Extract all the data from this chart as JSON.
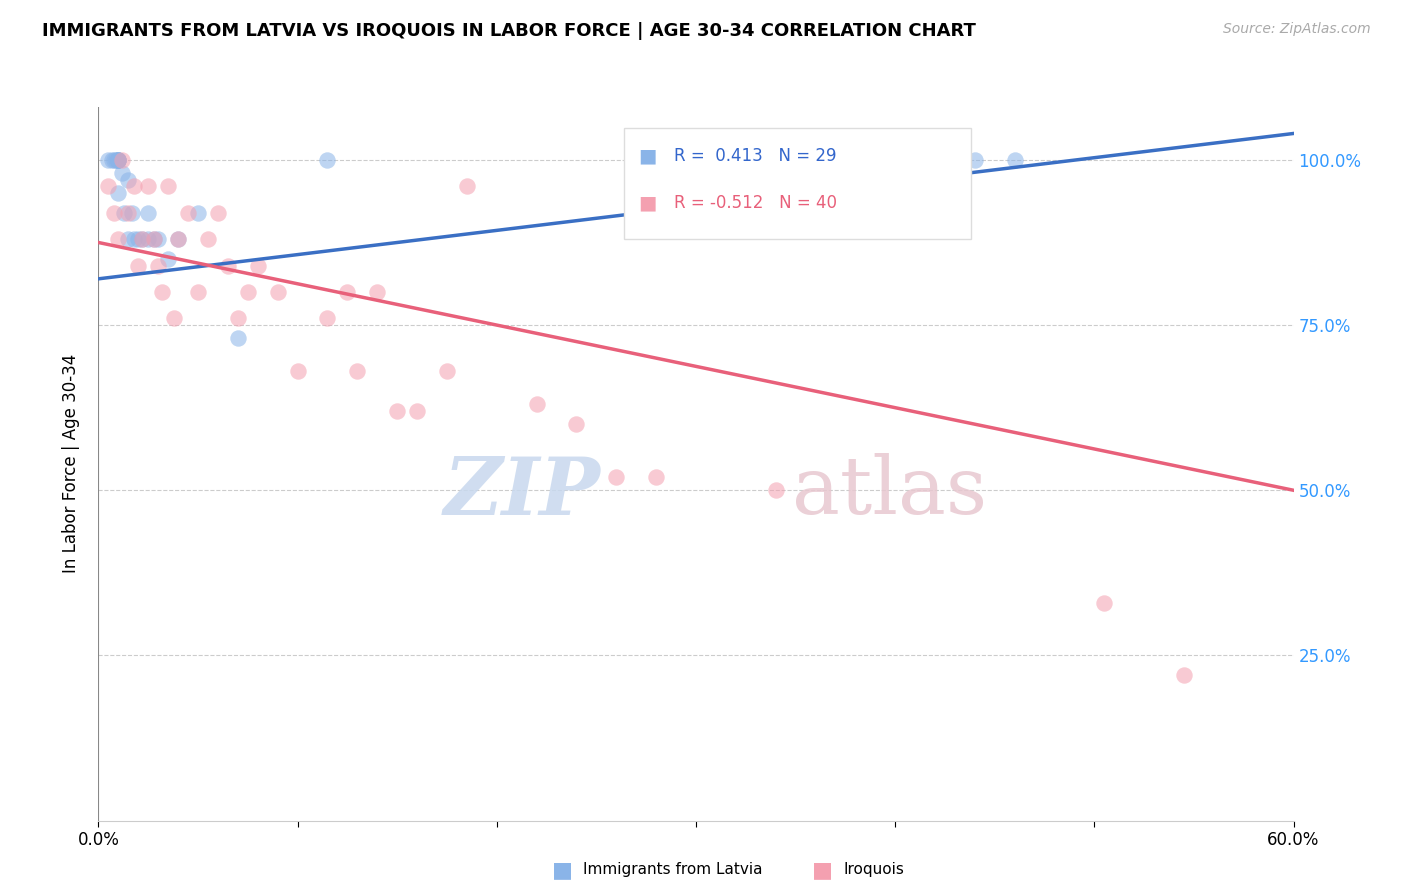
{
  "title": "IMMIGRANTS FROM LATVIA VS IROQUOIS IN LABOR FORCE | AGE 30-34 CORRELATION CHART",
  "source": "Source: ZipAtlas.com",
  "ylabel": "In Labor Force | Age 30-34",
  "ytick_labels": [
    "100.0%",
    "75.0%",
    "50.0%",
    "25.0%"
  ],
  "ytick_values": [
    1.0,
    0.75,
    0.5,
    0.25
  ],
  "xlim": [
    0.0,
    0.6
  ],
  "ylim": [
    0.0,
    1.08
  ],
  "blue_R": 0.413,
  "blue_N": 29,
  "pink_R": -0.512,
  "pink_N": 40,
  "blue_color": "#8ab4e8",
  "pink_color": "#f4a0b0",
  "blue_line_color": "#3a6fc4",
  "pink_line_color": "#e8607a",
  "blue_line_x0": 0.0,
  "blue_line_y0": 0.82,
  "blue_line_x1": 0.6,
  "blue_line_y1": 1.04,
  "pink_line_x0": 0.0,
  "pink_line_y0": 0.875,
  "pink_line_x1": 0.6,
  "pink_line_y1": 0.5,
  "blue_scatter_x": [
    0.005,
    0.007,
    0.008,
    0.009,
    0.01,
    0.01,
    0.01,
    0.01,
    0.01,
    0.01,
    0.012,
    0.013,
    0.015,
    0.015,
    0.017,
    0.018,
    0.02,
    0.022,
    0.025,
    0.025,
    0.028,
    0.03,
    0.035,
    0.04,
    0.05,
    0.07,
    0.115,
    0.44,
    0.46
  ],
  "blue_scatter_y": [
    1.0,
    1.0,
    1.0,
    1.0,
    1.0,
    1.0,
    1.0,
    1.0,
    1.0,
    0.95,
    0.98,
    0.92,
    0.97,
    0.88,
    0.92,
    0.88,
    0.88,
    0.88,
    0.92,
    0.88,
    0.88,
    0.88,
    0.85,
    0.88,
    0.92,
    0.73,
    1.0,
    1.0,
    1.0
  ],
  "pink_scatter_x": [
    0.005,
    0.008,
    0.01,
    0.012,
    0.015,
    0.018,
    0.02,
    0.022,
    0.025,
    0.028,
    0.03,
    0.032,
    0.035,
    0.038,
    0.04,
    0.045,
    0.05,
    0.055,
    0.06,
    0.065,
    0.07,
    0.075,
    0.08,
    0.09,
    0.1,
    0.115,
    0.125,
    0.13,
    0.14,
    0.15,
    0.16,
    0.175,
    0.185,
    0.22,
    0.24,
    0.26,
    0.28,
    0.34,
    0.505,
    0.545
  ],
  "pink_scatter_y": [
    0.96,
    0.92,
    0.88,
    1.0,
    0.92,
    0.96,
    0.84,
    0.88,
    0.96,
    0.88,
    0.84,
    0.8,
    0.96,
    0.76,
    0.88,
    0.92,
    0.8,
    0.88,
    0.92,
    0.84,
    0.76,
    0.8,
    0.84,
    0.8,
    0.68,
    0.76,
    0.8,
    0.68,
    0.8,
    0.62,
    0.62,
    0.68,
    0.96,
    0.63,
    0.6,
    0.52,
    0.52,
    0.5,
    0.33,
    0.22
  ]
}
